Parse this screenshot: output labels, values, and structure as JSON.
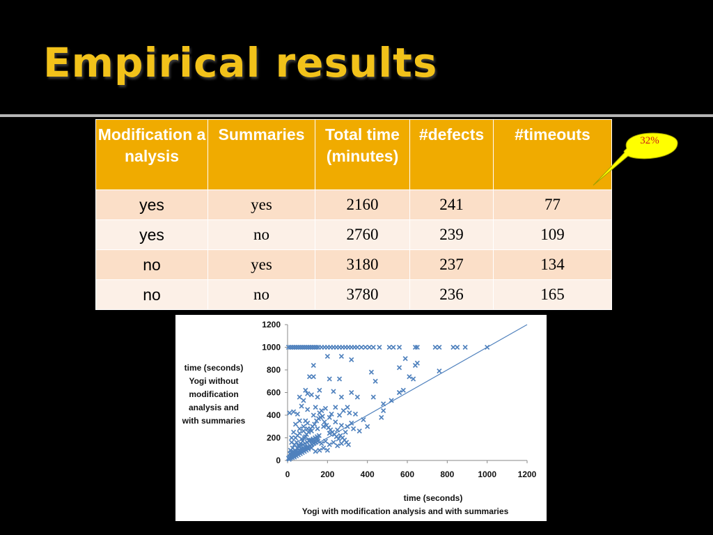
{
  "slide": {
    "title": "Empirical results"
  },
  "table": {
    "headers": [
      "Modification analysis",
      "Summaries",
      "Total time (minutes)",
      "#defects",
      "#timeouts"
    ],
    "rows": [
      [
        "yes",
        "yes",
        "2160",
        "241",
        "77"
      ],
      [
        "yes",
        "no",
        "2760",
        "239",
        "109"
      ],
      [
        "no",
        "yes",
        "3180",
        "237",
        "134"
      ],
      [
        "no",
        "no",
        "3780",
        "236",
        "165"
      ]
    ]
  },
  "callout": {
    "text": "32%",
    "fill": "#ffff00",
    "text_color": "#cc1a1a"
  },
  "colors": {
    "header": "#f0ab00",
    "row_odd": "#fbdfc8",
    "row_even": "#fcf0e7",
    "title": "#f2c21a",
    "series": "#4f81bd"
  },
  "chart_data": {
    "type": "scatter",
    "ylabel_lines": [
      "time (seconds)",
      "Yogi without",
      "modification",
      "analysis and",
      "with summaries"
    ],
    "xlabel_lines": [
      "time (seconds)",
      "Yogi with modification analysis and with summaries"
    ],
    "xlim": [
      0,
      1200
    ],
    "ylim": [
      0,
      1200
    ],
    "xticks": [
      "0",
      "200",
      "400",
      "600",
      "800",
      "1000",
      "1200"
    ],
    "yticks": [
      "0",
      "200",
      "400",
      "600",
      "800",
      "1000",
      "1200"
    ],
    "grid": false,
    "marker": "x",
    "reference_line": {
      "from": [
        0,
        0
      ],
      "to": [
        1200,
        1200
      ]
    },
    "series": [
      {
        "values": [
          [
            5,
            1000
          ],
          [
            15,
            1000
          ],
          [
            25,
            1000
          ],
          [
            35,
            1000
          ],
          [
            45,
            1000
          ],
          [
            55,
            1000
          ],
          [
            65,
            1000
          ],
          [
            75,
            1000
          ],
          [
            85,
            1000
          ],
          [
            95,
            1000
          ],
          [
            105,
            1000
          ],
          [
            115,
            1000
          ],
          [
            125,
            1000
          ],
          [
            135,
            1000
          ],
          [
            145,
            1000
          ],
          [
            155,
            1000
          ],
          [
            170,
            1000
          ],
          [
            185,
            1000
          ],
          [
            200,
            1000
          ],
          [
            215,
            1000
          ],
          [
            230,
            1000
          ],
          [
            245,
            1000
          ],
          [
            260,
            1000
          ],
          [
            275,
            1000
          ],
          [
            290,
            1000
          ],
          [
            305,
            1000
          ],
          [
            320,
            1000
          ],
          [
            335,
            1000
          ],
          [
            350,
            1000
          ],
          [
            370,
            1000
          ],
          [
            390,
            1000
          ],
          [
            410,
            1000
          ],
          [
            430,
            1000
          ],
          [
            460,
            1000
          ],
          [
            510,
            1000
          ],
          [
            530,
            1000
          ],
          [
            560,
            1000
          ],
          [
            640,
            1000
          ],
          [
            650,
            1000
          ],
          [
            740,
            1000
          ],
          [
            760,
            1000
          ],
          [
            830,
            1000
          ],
          [
            850,
            1000
          ],
          [
            890,
            1000
          ],
          [
            1000,
            1000
          ],
          [
            130,
            840
          ],
          [
            200,
            920
          ],
          [
            270,
            920
          ],
          [
            320,
            890
          ],
          [
            110,
            740
          ],
          [
            130,
            740
          ],
          [
            210,
            720
          ],
          [
            260,
            720
          ],
          [
            420,
            780
          ],
          [
            440,
            700
          ],
          [
            560,
            820
          ],
          [
            590,
            900
          ],
          [
            610,
            740
          ],
          [
            630,
            720
          ],
          [
            650,
            860
          ],
          [
            640,
            840
          ],
          [
            760,
            790
          ],
          [
            90,
            620
          ],
          [
            100,
            590
          ],
          [
            60,
            560
          ],
          [
            80,
            530
          ],
          [
            120,
            580
          ],
          [
            160,
            620
          ],
          [
            150,
            560
          ],
          [
            230,
            610
          ],
          [
            270,
            560
          ],
          [
            320,
            600
          ],
          [
            350,
            560
          ],
          [
            430,
            560
          ],
          [
            480,
            500
          ],
          [
            560,
            600
          ],
          [
            520,
            530
          ],
          [
            480,
            440
          ],
          [
            470,
            380
          ],
          [
            560,
            600
          ],
          [
            580,
            620
          ],
          [
            10,
            420
          ],
          [
            30,
            430
          ],
          [
            50,
            410
          ],
          [
            70,
            480
          ],
          [
            100,
            450
          ],
          [
            140,
            470
          ],
          [
            160,
            420
          ],
          [
            190,
            460
          ],
          [
            220,
            410
          ],
          [
            240,
            470
          ],
          [
            260,
            400
          ],
          [
            280,
            440
          ],
          [
            300,
            470
          ],
          [
            310,
            420
          ],
          [
            340,
            410
          ],
          [
            380,
            360
          ],
          [
            400,
            300
          ],
          [
            320,
            330
          ],
          [
            290,
            250
          ],
          [
            250,
            270
          ],
          [
            210,
            240
          ],
          [
            180,
            300
          ],
          [
            150,
            280
          ],
          [
            120,
            260
          ],
          [
            100,
            330
          ],
          [
            80,
            300
          ],
          [
            60,
            350
          ],
          [
            40,
            320
          ],
          [
            30,
            250
          ],
          [
            20,
            200
          ],
          [
            50,
            220
          ],
          [
            70,
            190
          ],
          [
            90,
            210
          ],
          [
            110,
            180
          ],
          [
            130,
            170
          ],
          [
            150,
            190
          ],
          [
            170,
            150
          ],
          [
            190,
            170
          ],
          [
            210,
            140
          ],
          [
            230,
            160
          ],
          [
            250,
            130
          ],
          [
            270,
            150
          ],
          [
            200,
            90
          ],
          [
            180,
            110
          ],
          [
            160,
            90
          ],
          [
            140,
            80
          ],
          [
            120,
            110
          ],
          [
            100,
            120
          ],
          [
            80,
            100
          ],
          [
            60,
            90
          ],
          [
            40,
            80
          ],
          [
            30,
            60
          ],
          [
            20,
            40
          ],
          [
            10,
            30
          ],
          [
            5,
            20
          ],
          [
            15,
            90
          ],
          [
            25,
            110
          ],
          [
            35,
            140
          ],
          [
            45,
            160
          ],
          [
            55,
            130
          ],
          [
            65,
            150
          ],
          [
            75,
            170
          ],
          [
            85,
            200
          ],
          [
            95,
            230
          ],
          [
            105,
            250
          ],
          [
            115,
            280
          ],
          [
            125,
            300
          ],
          [
            135,
            320
          ],
          [
            145,
            350
          ],
          [
            155,
            370
          ],
          [
            165,
            380
          ],
          [
            175,
            390
          ],
          [
            185,
            340
          ],
          [
            195,
            310
          ],
          [
            205,
            290
          ],
          [
            215,
            270
          ],
          [
            225,
            250
          ],
          [
            235,
            230
          ],
          [
            245,
            210
          ],
          [
            255,
            190
          ],
          [
            265,
            220
          ],
          [
            275,
            200
          ],
          [
            285,
            180
          ],
          [
            295,
            160
          ],
          [
            305,
            140
          ],
          [
            12,
            60
          ],
          [
            18,
            70
          ],
          [
            22,
            50
          ],
          [
            28,
            80
          ],
          [
            32,
            40
          ],
          [
            38,
            90
          ],
          [
            42,
            60
          ],
          [
            48,
            110
          ],
          [
            52,
            70
          ],
          [
            58,
            120
          ],
          [
            62,
            80
          ],
          [
            68,
            130
          ],
          [
            72,
            90
          ],
          [
            78,
            140
          ],
          [
            82,
            100
          ],
          [
            88,
            150
          ],
          [
            92,
            110
          ],
          [
            98,
            160
          ],
          [
            102,
            120
          ],
          [
            108,
            170
          ],
          [
            112,
            130
          ],
          [
            118,
            180
          ],
          [
            122,
            140
          ],
          [
            128,
            190
          ],
          [
            132,
            150
          ],
          [
            138,
            200
          ],
          [
            142,
            160
          ],
          [
            148,
            210
          ],
          [
            152,
            170
          ],
          [
            158,
            220
          ],
          [
            8,
            10
          ],
          [
            14,
            20
          ],
          [
            16,
            35
          ],
          [
            24,
            25
          ],
          [
            26,
            45
          ],
          [
            34,
            30
          ],
          [
            36,
            55
          ],
          [
            44,
            40
          ],
          [
            46,
            65
          ],
          [
            54,
            50
          ],
          [
            56,
            75
          ],
          [
            64,
            60
          ],
          [
            66,
            85
          ],
          [
            74,
            70
          ],
          [
            76,
            95
          ],
          [
            84,
            80
          ],
          [
            86,
            105
          ],
          [
            94,
            90
          ],
          [
            96,
            115
          ],
          [
            104,
            100
          ],
          [
            20,
            160
          ],
          [
            40,
            200
          ],
          [
            60,
            240
          ],
          [
            80,
            260
          ],
          [
            100,
            280
          ],
          [
            60,
            280
          ],
          [
            90,
            350
          ],
          [
            130,
            400
          ],
          [
            170,
            440
          ],
          [
            210,
            380
          ],
          [
            240,
            340
          ],
          [
            270,
            310
          ],
          [
            300,
            300
          ],
          [
            330,
            280
          ],
          [
            360,
            260
          ]
        ]
      }
    ]
  }
}
